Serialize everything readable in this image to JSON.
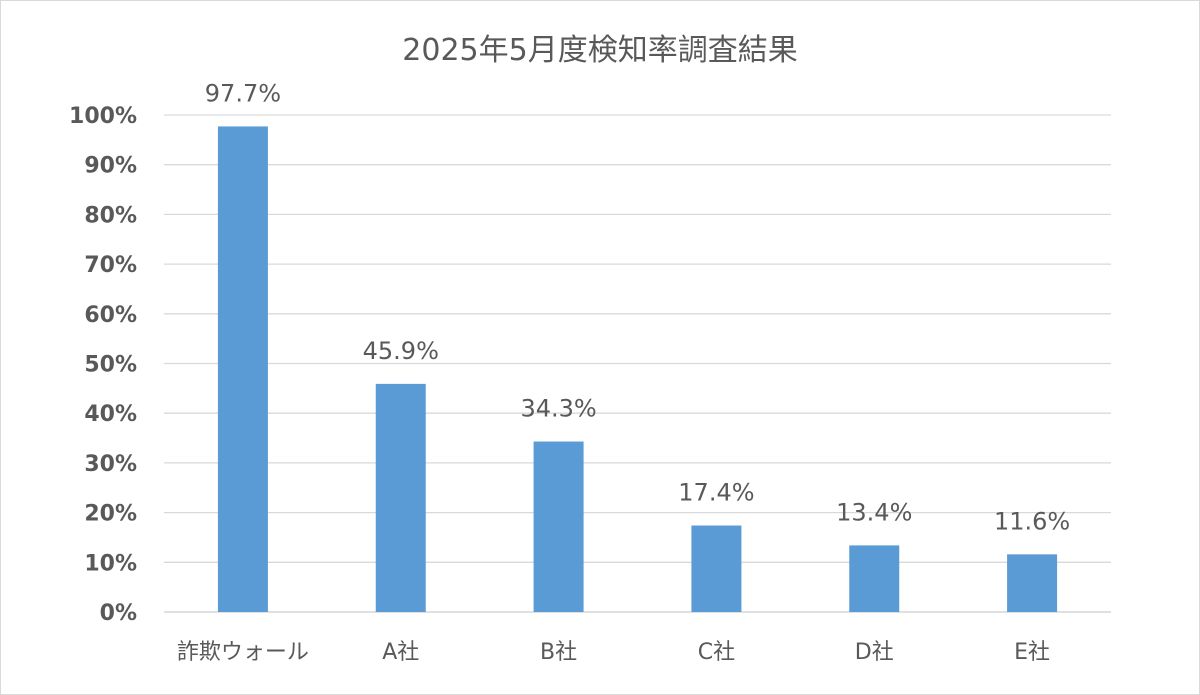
{
  "chart_data": {
    "type": "bar",
    "title": "2025年5月度検知率調査結果",
    "categories": [
      "詐欺ウォール",
      "A社",
      "B社",
      "C社",
      "D社",
      "E社"
    ],
    "series": [
      {
        "values": [
          97.7,
          45.9,
          34.3,
          17.4,
          13.4,
          11.6
        ]
      }
    ],
    "value_labels": [
      "97.7%",
      "45.9%",
      "34.3%",
      "17.4%",
      "13.4%",
      "11.6%"
    ],
    "ylim": [
      0,
      100
    ],
    "y_ticks": [
      0,
      10,
      20,
      30,
      40,
      50,
      60,
      70,
      80,
      90,
      100
    ],
    "y_tick_labels": [
      "0%",
      "10%",
      "20%",
      "30%",
      "40%",
      "50%",
      "60%",
      "70%",
      "80%",
      "90%",
      "100%"
    ],
    "grid": true,
    "legend": "none",
    "colors": {
      "bar": "#5b9bd5",
      "grid": "#d9d9d9",
      "text": "#595959",
      "title": "#595959"
    }
  }
}
